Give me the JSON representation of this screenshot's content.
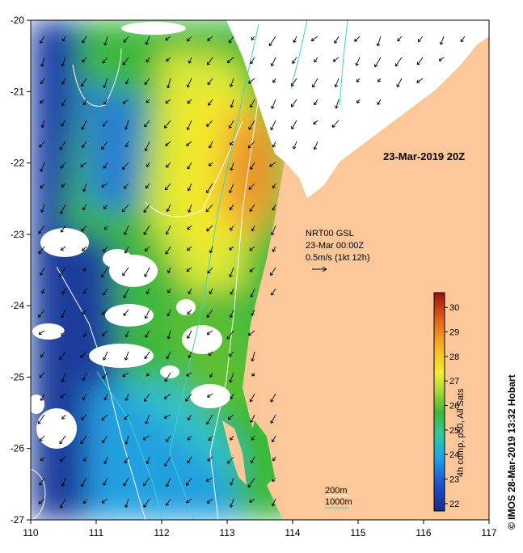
{
  "map": {
    "date_label": "23-Mar-2019 20Z",
    "x_ticks": [
      "110",
      "111",
      "112",
      "113",
      "114",
      "115",
      "116",
      "117"
    ],
    "y_ticks": [
      "-20",
      "-21",
      "-22",
      "-23",
      "-24",
      "-25",
      "-26",
      "-27"
    ],
    "current_legend": {
      "line1": "NRT00 GSL",
      "line2": "23-Mar 00:00Z",
      "line3": "0.5m/s (1kt 12h)"
    },
    "isobath_legend": {
      "line1": "200m",
      "line2": "1000m",
      "color_200m": "#ffffff",
      "color_1000m": "#40d0d0"
    },
    "colorbar": {
      "ticks": [
        "30",
        "29",
        "28",
        "27",
        "26",
        "25",
        "24",
        "23",
        "22"
      ],
      "label": "4h comp, p50, All Sats",
      "min": 21.7,
      "max": 30.6
    },
    "credit": "© IMOS 28-Mar-2019 13:32 Hobart",
    "colors": {
      "land": "#fcc89a",
      "no_data": "#ffffff",
      "arrow": "#000000"
    }
  }
}
